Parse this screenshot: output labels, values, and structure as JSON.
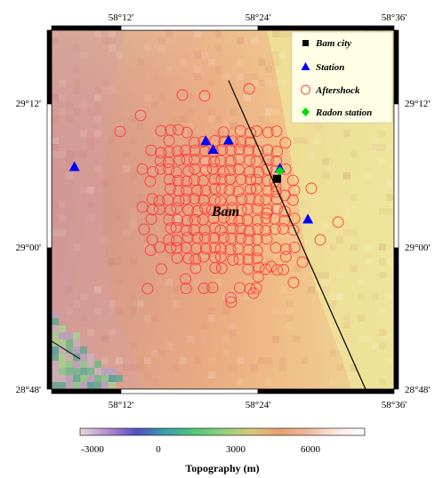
{
  "map": {
    "lon_labels": [
      "58°12'",
      "58°24'",
      "58°36'"
    ],
    "lat_labels": [
      "29°12'",
      "29°00'",
      "28°48'"
    ],
    "place_label": "Bam",
    "fault_line": [
      [
        58.31,
        29.23
      ],
      [
        58.55,
        28.8
      ]
    ],
    "fault_color": "#000000"
  },
  "legend": {
    "items": [
      {
        "label": "Bam city",
        "symbol": "square",
        "color": "#000000"
      },
      {
        "label": "Station",
        "symbol": "triangle",
        "color": "#0000ff"
      },
      {
        "label": "Aftershock",
        "symbol": "circle-open",
        "color": "#ff3b3b"
      },
      {
        "label": "Radon station",
        "symbol": "diamond",
        "color": "#00dd00"
      }
    ]
  },
  "points": {
    "bam_city": [
      58.395,
      29.093
    ],
    "radon_station": [
      58.4,
      29.104
    ],
    "stations": [
      [
        58.04,
        29.11
      ],
      [
        58.27,
        29.146
      ],
      [
        58.283,
        29.134
      ],
      [
        58.31,
        29.147
      ],
      [
        58.4,
        29.108
      ],
      [
        58.449,
        29.037
      ]
    ]
  },
  "colorbar": {
    "title": "Topography (m)",
    "ticks": [
      "-3000",
      "0",
      "3000",
      "6000"
    ],
    "colors": [
      "#e0dcd6",
      "#b48ad0",
      "#5050c0",
      "#3aa0a8",
      "#50c878",
      "#90d080",
      "#d8c878",
      "#e8a070",
      "#f0b8a0",
      "#fde8e0",
      "#ffffff"
    ]
  }
}
